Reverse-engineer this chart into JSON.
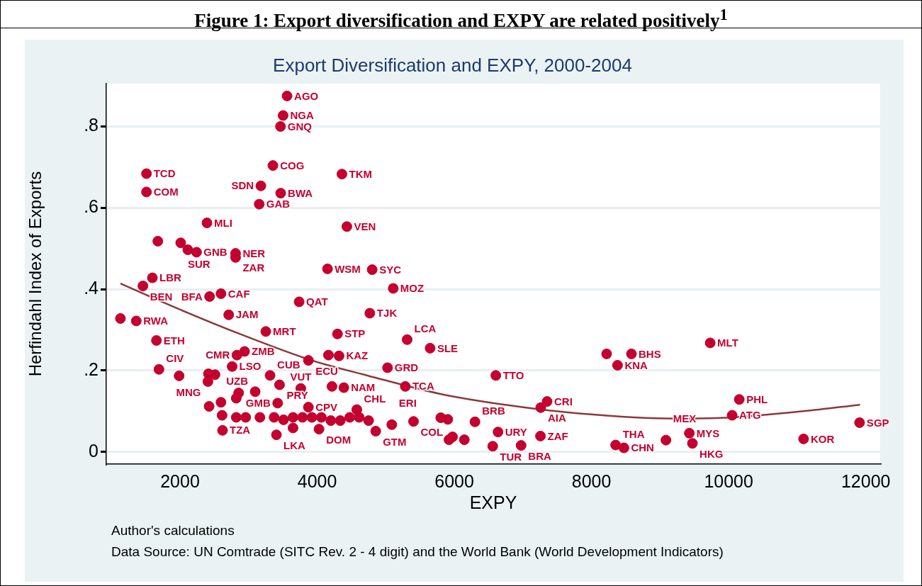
{
  "chart_data": {
    "type": "scatter",
    "title": "Figure 1: Export diversification and EXPY are related positively$^{1}$",
    "subtitle": "Export Diversification and EXPY, 2000-2004",
    "xlabel": "EXPY",
    "ylabel": "Herfindahl Index of Exports",
    "annotations": [
      "Author's calculations",
      "Data Source: UN Comtrade (SITC Rev. 2 - 4 digit) and the World Bank (World Development Indicators)"
    ],
    "xlim": [
      925,
      12210
    ],
    "ylim": [
      -0.03,
      0.905
    ],
    "xticks": [
      2000,
      4000,
      6000,
      8000,
      10000,
      12000
    ],
    "yticks": [
      {
        "value": 0,
        "label": "0"
      },
      {
        "value": 0.2,
        "label": ".2"
      },
      {
        "value": 0.4,
        "label": ".4"
      },
      {
        "value": 0.6,
        "label": ".6"
      },
      {
        "value": 0.8,
        "label": ".8"
      }
    ],
    "grid": "y",
    "legend": false,
    "marker": "circle",
    "series": [
      {
        "type": "scatter",
        "color": "#c4002f",
        "x": [
          3561,
          3503,
          3465,
          3355,
          1511,
          4361,
          1511,
          3179,
          3468,
          3155,
          2393,
          4433,
          1676,
          2010,
          2114,
          2241,
          2810,
          2810,
          4151,
          4802,
          1597,
          1459,
          5109,
          2597,
          2431,
          3737,
          4768,
          2710,
          1131,
          1362,
          3251,
          4296,
          5312,
          1656,
          5647,
          9731,
          8221,
          8583,
          8380,
          2941,
          2830,
          3872,
          4164,
          4319,
          5026,
          2760,
          1693,
          1987,
          2414,
          2510,
          2407,
          3313,
          6605,
          3451,
          3761,
          4216,
          4389,
          5285,
          2855,
          3096,
          2820,
          3424,
          3872,
          2597,
          2424,
          4578,
          2613,
          2820,
          2958,
          3165,
          3372,
          3510,
          3648,
          3786,
          3923,
          4061,
          4199,
          4337,
          4475,
          4613,
          4750,
          4027,
          3648,
          3406,
          2620,
          4854,
          5088,
          5405,
          5802,
          5905,
          6301,
          6637,
          7256,
          5922,
          5974,
          6146,
          6560,
          6974,
          7353,
          7260,
          8352,
          8473,
          9086,
          9427,
          9472,
          10155,
          10051,
          11093,
          11909
        ],
        "values": [
          0.875,
          0.827,
          0.8,
          0.704,
          0.684,
          0.683,
          0.639,
          0.654,
          0.636,
          0.609,
          0.563,
          0.554,
          0.518,
          0.514,
          0.497,
          0.491,
          0.488,
          0.478,
          0.45,
          0.448,
          0.428,
          0.408,
          0.402,
          0.389,
          0.382,
          0.369,
          0.341,
          0.337,
          0.328,
          0.322,
          0.296,
          0.29,
          0.276,
          0.274,
          0.255,
          0.268,
          0.241,
          0.241,
          0.213,
          0.247,
          0.238,
          0.225,
          0.238,
          0.236,
          0.207,
          0.21,
          0.203,
          0.187,
          0.192,
          0.19,
          0.173,
          0.188,
          0.188,
          0.165,
          0.156,
          0.161,
          0.158,
          0.161,
          0.145,
          0.148,
          0.132,
          0.12,
          0.11,
          0.122,
          0.112,
          0.104,
          0.09,
          0.085,
          0.085,
          0.085,
          0.085,
          0.079,
          0.085,
          0.085,
          0.085,
          0.085,
          0.077,
          0.077,
          0.085,
          0.085,
          0.077,
          0.056,
          0.059,
          0.042,
          0.053,
          0.051,
          0.067,
          0.075,
          0.084,
          0.08,
          0.074,
          0.049,
          0.039,
          0.03,
          0.037,
          0.03,
          0.014,
          0.016,
          0.124,
          0.109,
          0.017,
          0.01,
          0.029,
          0.046,
          0.021,
          0.129,
          0.09,
          0.032,
          0.072
        ],
        "value_labels": [
          "AGO",
          "NGA",
          "GNQ",
          "COG",
          "TCD",
          "TKM",
          "COM",
          "SDN",
          "BWA",
          "GAB",
          "MLI",
          "VEN",
          null,
          "SUR",
          null,
          "GNB",
          "NER",
          "ZAR",
          "WSM",
          "SYC",
          "LBR",
          "BEN",
          "MOZ",
          "CAF",
          "BFA",
          "QAT",
          "TJK",
          "JAM",
          null,
          "RWA",
          "MRT",
          "STP",
          "LCA",
          "ETH",
          "SLE",
          "MLT",
          null,
          "BHS",
          "KNA",
          "ZMB",
          "CMR",
          "ECU",
          null,
          "KAZ",
          "GRD",
          "LSO",
          "CIV",
          null,
          null,
          null,
          "MNG",
          "CUB",
          "TTO",
          "PRY",
          "VUT",
          null,
          "NAM",
          "TCA",
          null,
          "UZB",
          null,
          "GMB",
          "CPV",
          null,
          null,
          "CHL",
          null,
          null,
          null,
          null,
          null,
          null,
          null,
          null,
          null,
          null,
          null,
          null,
          null,
          null,
          null,
          "DOM",
          null,
          "LKA",
          "TZA",
          "GTM",
          "ERI",
          "COL",
          null,
          null,
          "BRB",
          "URY",
          "ZAF",
          null,
          null,
          null,
          "TUR",
          "BRA",
          "CRI",
          "AIA",
          "THA",
          "CHN",
          "MEX",
          "MYS",
          "HKG",
          "PHL",
          "ATG",
          "KOR",
          "SGP"
        ]
      },
      {
        "type": "line",
        "color": "#8b3a3a",
        "marker": "none",
        "line_style": "solid",
        "x": [
          1131,
          1959,
          2889,
          3923,
          4750,
          5784,
          6818,
          7852,
          9197,
          10055,
          11089,
          11916
        ],
        "values": [
          0.414,
          0.353,
          0.289,
          0.225,
          0.187,
          0.143,
          0.114,
          0.094,
          0.082,
          0.085,
          0.1,
          0.116
        ]
      }
    ]
  }
}
